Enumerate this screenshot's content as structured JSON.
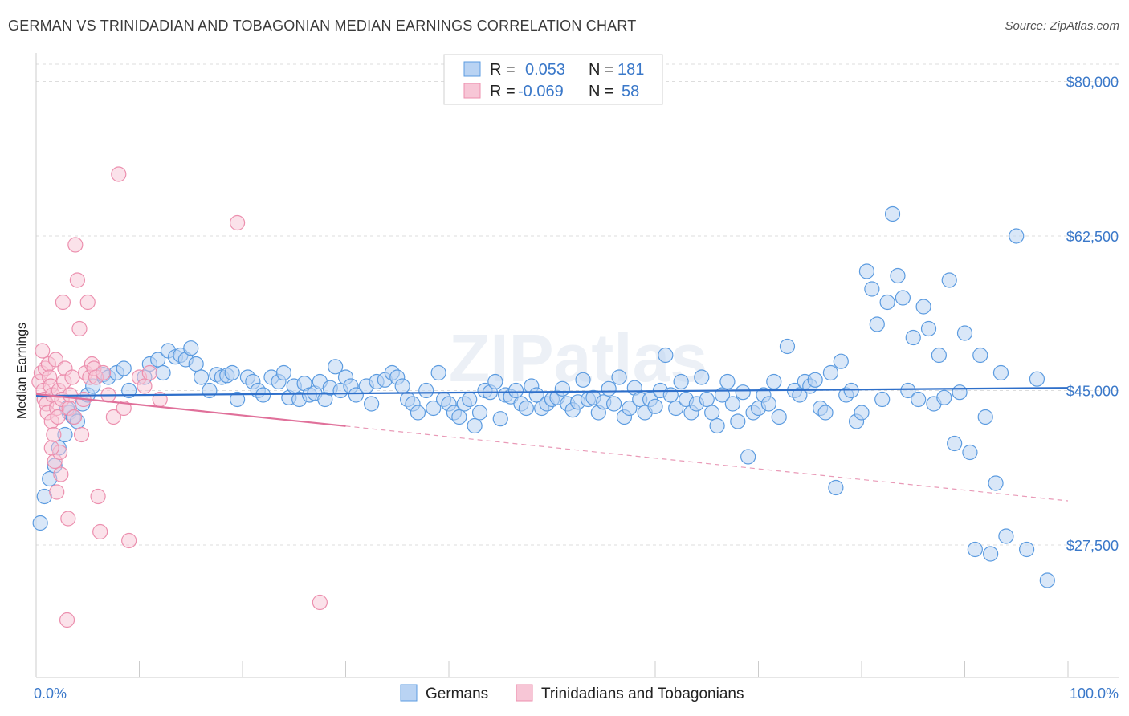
{
  "title": "GERMAN VS TRINIDADIAN AND TOBAGONIAN MEDIAN EARNINGS CORRELATION CHART",
  "source": "Source: ZipAtlas.com",
  "watermark": "ZIPatlas",
  "colors": {
    "blue": "#5b9be0",
    "blue_fill": "#b9d3f3",
    "blue_line": "#2e6fca",
    "pink": "#ec8fae",
    "pink_fill": "#f7c6d6",
    "pink_line": "#e0709a",
    "grid": "#dddddd",
    "tick_text": "#3a78c9"
  },
  "legend": {
    "rows": [
      {
        "r_label": "R =",
        "r_value": "0.053",
        "n_label": "N =",
        "n_value": "181"
      },
      {
        "r_label": "R =",
        "r_value": "-0.069",
        "n_label": "N =",
        "n_value": "58"
      }
    ]
  },
  "chart_data": {
    "type": "scatter",
    "title": "GERMAN VS TRINIDADIAN AND TOBAGONIAN MEDIAN EARNINGS CORRELATION CHART",
    "xlabel": "",
    "ylabel": "Median Earnings",
    "xlim": [
      0,
      100
    ],
    "ylim": [
      12500,
      82500
    ],
    "x_tick_labels": [
      "0.0%",
      "100.0%"
    ],
    "y_ticks": [
      27500,
      45000,
      62500,
      80000
    ],
    "y_tick_labels": [
      "$27,500",
      "$45,000",
      "$62,500",
      "$80,000"
    ],
    "grid": true,
    "legend_position": "top-center",
    "series": [
      {
        "name": "Germans",
        "color": "blue",
        "trend": {
          "x": [
            0,
            100
          ],
          "y": [
            44400,
            45300
          ],
          "dashed_from": null
        },
        "points": [
          [
            0.4,
            30000
          ],
          [
            0.8,
            33000
          ],
          [
            1.3,
            35000
          ],
          [
            1.8,
            36500
          ],
          [
            2.2,
            38500
          ],
          [
            2.8,
            40000
          ],
          [
            3.2,
            42500
          ],
          [
            3.6,
            42000
          ],
          [
            4.0,
            41500
          ],
          [
            3.0,
            43000
          ],
          [
            4.5,
            43500
          ],
          [
            5.0,
            44500
          ],
          [
            5.5,
            45500
          ],
          [
            6.5,
            46800
          ],
          [
            7.0,
            46500
          ],
          [
            7.8,
            47000
          ],
          [
            8.5,
            47500
          ],
          [
            9.0,
            45000
          ],
          [
            10.5,
            46500
          ],
          [
            11.0,
            48000
          ],
          [
            11.8,
            48500
          ],
          [
            12.3,
            47000
          ],
          [
            12.8,
            49500
          ],
          [
            13.5,
            48800
          ],
          [
            14.0,
            49000
          ],
          [
            14.5,
            48500
          ],
          [
            15.0,
            49800
          ],
          [
            15.5,
            48000
          ],
          [
            16.0,
            46500
          ],
          [
            16.8,
            45000
          ],
          [
            17.5,
            46800
          ],
          [
            18.0,
            46500
          ],
          [
            18.5,
            46700
          ],
          [
            19.0,
            47000
          ],
          [
            19.5,
            44000
          ],
          [
            20.5,
            46500
          ],
          [
            21.0,
            46000
          ],
          [
            21.5,
            45000
          ],
          [
            22.0,
            44500
          ],
          [
            22.8,
            46500
          ],
          [
            23.5,
            46000
          ],
          [
            24.0,
            47000
          ],
          [
            24.5,
            44200
          ],
          [
            25.0,
            45500
          ],
          [
            25.5,
            44000
          ],
          [
            26.0,
            45800
          ],
          [
            26.5,
            44500
          ],
          [
            27.0,
            44700
          ],
          [
            27.5,
            46000
          ],
          [
            28.0,
            44000
          ],
          [
            28.5,
            45300
          ],
          [
            29.0,
            47700
          ],
          [
            29.5,
            45000
          ],
          [
            30.0,
            46500
          ],
          [
            30.5,
            45500
          ],
          [
            31.0,
            44500
          ],
          [
            32.0,
            45500
          ],
          [
            32.5,
            43500
          ],
          [
            33.0,
            46000
          ],
          [
            33.8,
            46200
          ],
          [
            34.5,
            47000
          ],
          [
            35.0,
            46500
          ],
          [
            35.5,
            45500
          ],
          [
            36.0,
            44000
          ],
          [
            36.5,
            43500
          ],
          [
            37.0,
            42500
          ],
          [
            37.8,
            45000
          ],
          [
            38.5,
            43000
          ],
          [
            39.0,
            47000
          ],
          [
            39.5,
            44000
          ],
          [
            40.0,
            43500
          ],
          [
            40.5,
            42500
          ],
          [
            41.0,
            42000
          ],
          [
            41.5,
            43500
          ],
          [
            42.0,
            44000
          ],
          [
            42.5,
            41000
          ],
          [
            43.0,
            42500
          ],
          [
            43.5,
            45000
          ],
          [
            44.0,
            44800
          ],
          [
            44.5,
            46000
          ],
          [
            45.0,
            41800
          ],
          [
            45.5,
            44500
          ],
          [
            46.0,
            44300
          ],
          [
            46.5,
            45000
          ],
          [
            47.0,
            43500
          ],
          [
            47.5,
            43000
          ],
          [
            48.0,
            45500
          ],
          [
            48.5,
            44500
          ],
          [
            49.0,
            43000
          ],
          [
            49.5,
            43500
          ],
          [
            50.0,
            44000
          ],
          [
            50.5,
            44200
          ],
          [
            51.0,
            45200
          ],
          [
            51.5,
            43500
          ],
          [
            52.0,
            42800
          ],
          [
            52.5,
            43700
          ],
          [
            53.0,
            46200
          ],
          [
            53.5,
            44000
          ],
          [
            54.0,
            44200
          ],
          [
            54.5,
            42500
          ],
          [
            55.0,
            43700
          ],
          [
            55.5,
            45200
          ],
          [
            56.0,
            43500
          ],
          [
            56.5,
            46500
          ],
          [
            57.0,
            42000
          ],
          [
            57.5,
            43000
          ],
          [
            58.0,
            45300
          ],
          [
            58.5,
            44000
          ],
          [
            59.0,
            42500
          ],
          [
            59.5,
            44000
          ],
          [
            60.0,
            43200
          ],
          [
            60.5,
            45000
          ],
          [
            61.0,
            49000
          ],
          [
            61.5,
            44500
          ],
          [
            62.0,
            43000
          ],
          [
            62.5,
            46000
          ],
          [
            63.0,
            44000
          ],
          [
            63.5,
            42500
          ],
          [
            64.0,
            43500
          ],
          [
            64.5,
            46500
          ],
          [
            65.0,
            44000
          ],
          [
            65.5,
            42500
          ],
          [
            66.0,
            41000
          ],
          [
            66.5,
            44500
          ],
          [
            67.0,
            46000
          ],
          [
            67.5,
            43500
          ],
          [
            68.0,
            41500
          ],
          [
            68.5,
            44800
          ],
          [
            69.0,
            37500
          ],
          [
            69.5,
            42500
          ],
          [
            70.0,
            43000
          ],
          [
            70.5,
            44500
          ],
          [
            71.0,
            43500
          ],
          [
            71.5,
            46000
          ],
          [
            72.0,
            42000
          ],
          [
            72.8,
            50000
          ],
          [
            73.5,
            45000
          ],
          [
            74.0,
            44500
          ],
          [
            74.5,
            46000
          ],
          [
            75.0,
            45500
          ],
          [
            75.5,
            46200
          ],
          [
            76.0,
            43000
          ],
          [
            76.5,
            42500
          ],
          [
            77.0,
            47000
          ],
          [
            77.5,
            34000
          ],
          [
            78.0,
            48300
          ],
          [
            78.5,
            44500
          ],
          [
            79.0,
            45000
          ],
          [
            79.5,
            41500
          ],
          [
            80.0,
            42500
          ],
          [
            80.5,
            58500
          ],
          [
            81.0,
            56500
          ],
          [
            81.5,
            52500
          ],
          [
            82.0,
            44000
          ],
          [
            82.5,
            55000
          ],
          [
            83.0,
            65000
          ],
          [
            83.5,
            58000
          ],
          [
            84.0,
            55500
          ],
          [
            84.5,
            45000
          ],
          [
            85.0,
            51000
          ],
          [
            85.5,
            44000
          ],
          [
            86.0,
            54500
          ],
          [
            86.5,
            52000
          ],
          [
            87.0,
            43500
          ],
          [
            87.5,
            49000
          ],
          [
            88.0,
            44200
          ],
          [
            88.5,
            57500
          ],
          [
            89.0,
            39000
          ],
          [
            89.5,
            44800
          ],
          [
            90.0,
            51500
          ],
          [
            90.5,
            38000
          ],
          [
            91.0,
            27000
          ],
          [
            91.5,
            49000
          ],
          [
            92.0,
            42000
          ],
          [
            92.5,
            26500
          ],
          [
            93.0,
            34500
          ],
          [
            93.5,
            47000
          ],
          [
            94.0,
            28500
          ],
          [
            95.0,
            62500
          ],
          [
            96.0,
            27000
          ],
          [
            97.0,
            46300
          ],
          [
            98.0,
            23500
          ]
        ]
      },
      {
        "name": "Trinidadians and Tobagonians",
        "color": "pink",
        "trend": {
          "x": [
            0,
            100
          ],
          "y": [
            44600,
            32500
          ],
          "solid_until": 30
        },
        "points": [
          [
            0.3,
            46000
          ],
          [
            0.5,
            47000
          ],
          [
            0.6,
            49500
          ],
          [
            0.7,
            45000
          ],
          [
            0.8,
            44000
          ],
          [
            0.9,
            47500
          ],
          [
            1.0,
            43500
          ],
          [
            1.1,
            42500
          ],
          [
            1.2,
            48000
          ],
          [
            1.3,
            46500
          ],
          [
            1.4,
            45500
          ],
          [
            1.5,
            41500
          ],
          [
            1.6,
            44500
          ],
          [
            1.7,
            40000
          ],
          [
            1.8,
            37000
          ],
          [
            1.9,
            48500
          ],
          [
            2.0,
            43000
          ],
          [
            2.1,
            42000
          ],
          [
            2.2,
            45000
          ],
          [
            2.3,
            38000
          ],
          [
            2.4,
            35500
          ],
          [
            2.5,
            44000
          ],
          [
            2.6,
            55000
          ],
          [
            2.7,
            46000
          ],
          [
            2.8,
            47500
          ],
          [
            3.0,
            19000
          ],
          [
            3.1,
            30500
          ],
          [
            3.2,
            43000
          ],
          [
            3.3,
            44500
          ],
          [
            3.5,
            46500
          ],
          [
            3.7,
            42000
          ],
          [
            3.8,
            61500
          ],
          [
            4.0,
            57500
          ],
          [
            4.2,
            52000
          ],
          [
            4.4,
            40000
          ],
          [
            4.6,
            44000
          ],
          [
            4.8,
            47000
          ],
          [
            5.0,
            55000
          ],
          [
            5.2,
            46500
          ],
          [
            5.4,
            48000
          ],
          [
            5.6,
            47500
          ],
          [
            5.8,
            46500
          ],
          [
            6.0,
            33000
          ],
          [
            6.2,
            29000
          ],
          [
            6.5,
            47000
          ],
          [
            7.0,
            44500
          ],
          [
            7.5,
            42000
          ],
          [
            8.0,
            69500
          ],
          [
            8.5,
            43000
          ],
          [
            9.0,
            28000
          ],
          [
            10.0,
            46500
          ],
          [
            10.5,
            45500
          ],
          [
            11.0,
            47000
          ],
          [
            12.0,
            44000
          ],
          [
            19.5,
            64000
          ],
          [
            27.5,
            21000
          ],
          [
            1.5,
            38500
          ],
          [
            2.0,
            33500
          ]
        ]
      }
    ]
  }
}
